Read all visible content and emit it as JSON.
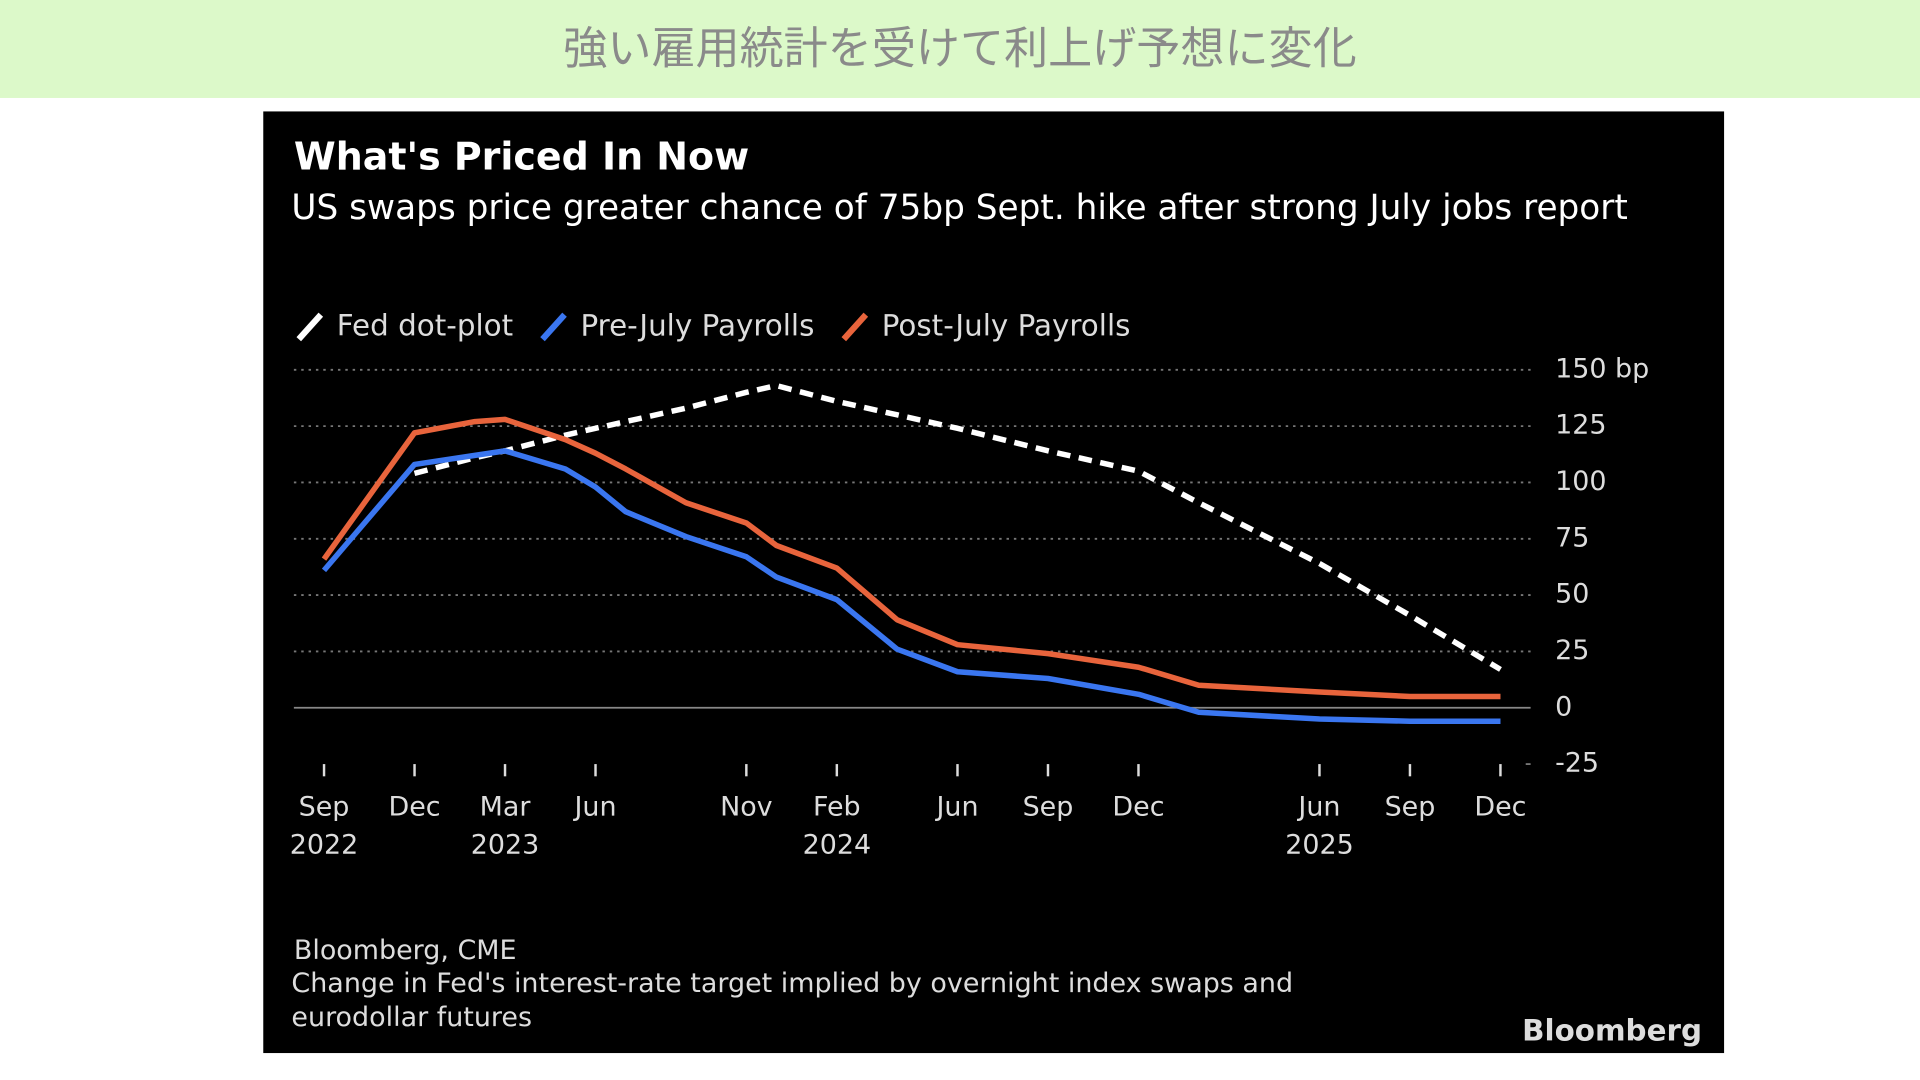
{
  "banner": {
    "title": "強い雇用統計を受けて利上げ予想に変化"
  },
  "chart_data": {
    "type": "line",
    "title": "What's Priced In Now",
    "subtitle": "US swaps price greater chance of 75bp Sept. hike after strong July jobs report",
    "source": "Bloomberg, CME",
    "note": "Change in Fed's interest-rate target implied by overnight index swaps and eurodollar futures",
    "logo": "Bloomberg",
    "x": [
      "2022-09",
      "2022-12",
      "2023-02",
      "2023-03",
      "2023-05",
      "2023-06",
      "2023-07",
      "2023-09",
      "2023-11",
      "2023-12",
      "2024-02",
      "2024-04",
      "2024-06",
      "2024-09",
      "2024-12",
      "2025-02",
      "2025-06",
      "2025-09",
      "2025-12"
    ],
    "series": [
      {
        "name": "Fed dot-plot",
        "color": "#ffffff",
        "dashed": true,
        "values": [
          null,
          104,
          111,
          114,
          121,
          124,
          127,
          133,
          140,
          143,
          136,
          130,
          124,
          114,
          105,
          91,
          64,
          41,
          17
        ]
      },
      {
        "name": "Pre-July Payrolls",
        "color": "#3a76f0",
        "values": [
          61,
          108,
          112,
          114,
          106,
          98,
          87,
          76,
          67,
          58,
          48,
          26,
          16,
          13,
          6,
          -2,
          -5,
          -6,
          -6
        ]
      },
      {
        "name": "Post-July Payrolls",
        "color": "#e8643c",
        "values": [
          66,
          122,
          127,
          128,
          119,
          113,
          106,
          91,
          82,
          72,
          62,
          39,
          28,
          24,
          18,
          10,
          7,
          5,
          5
        ]
      }
    ],
    "xlim": [
      "2022-08",
      "2026-01"
    ],
    "xticks": [
      {
        "value": "2022-09",
        "label": "Sep"
      },
      {
        "value": "2022-12",
        "label": "Dec"
      },
      {
        "value": "2023-03",
        "label": "Mar"
      },
      {
        "value": "2023-06",
        "label": "Jun"
      },
      {
        "value": "2023-11",
        "label": "Nov"
      },
      {
        "value": "2024-02",
        "label": "Feb"
      },
      {
        "value": "2024-06",
        "label": "Jun"
      },
      {
        "value": "2024-09",
        "label": "Sep"
      },
      {
        "value": "2024-12",
        "label": "Dec"
      },
      {
        "value": "2025-06",
        "label": "Jun"
      },
      {
        "value": "2025-09",
        "label": "Sep"
      },
      {
        "value": "2025-12",
        "label": "Dec"
      }
    ],
    "xtick_years": [
      {
        "value": "2022-09",
        "label": "2022"
      },
      {
        "value": "2023-03",
        "label": "2023"
      },
      {
        "value": "2024-02",
        "label": "2024"
      },
      {
        "value": "2025-06",
        "label": "2025"
      }
    ],
    "ylim": [
      -25,
      150
    ],
    "yticks": [
      {
        "value": 150,
        "label": "150 bp"
      },
      125,
      100,
      75,
      50,
      25,
      0,
      -25
    ],
    "grid": true
  }
}
